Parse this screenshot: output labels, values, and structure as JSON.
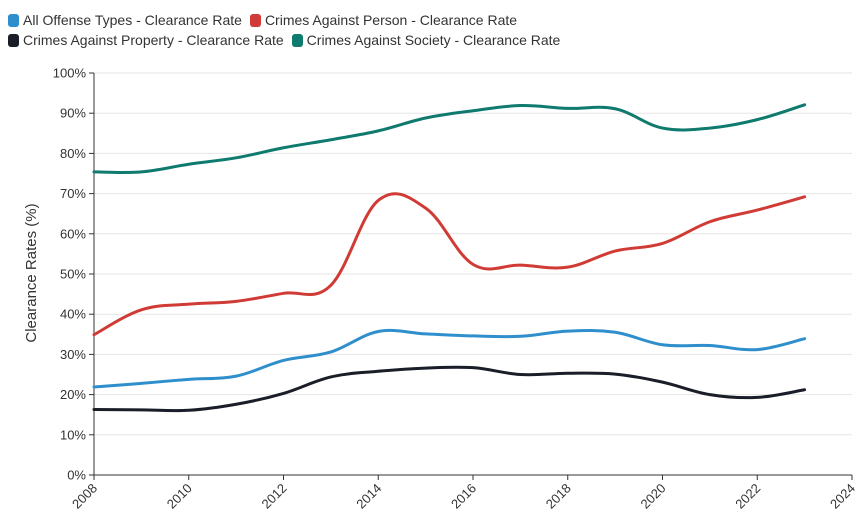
{
  "chart_data": {
    "type": "line",
    "title": "",
    "xlabel": "",
    "ylabel": "Clearance Rates (%)",
    "xlim": [
      2008,
      2024
    ],
    "ylim": [
      0,
      100
    ],
    "x_ticks": [
      2008,
      2010,
      2012,
      2014,
      2016,
      2018,
      2020,
      2022,
      2024
    ],
    "y_ticks": [
      0,
      10,
      20,
      30,
      40,
      50,
      60,
      70,
      80,
      90,
      100
    ],
    "y_tick_suffix": "%",
    "grid": "horizontal",
    "legend_position": "top-left",
    "x": [
      2008,
      2009,
      2010,
      2011,
      2012,
      2013,
      2014,
      2015,
      2016,
      2017,
      2018,
      2019,
      2020,
      2021,
      2022,
      2023
    ],
    "series": [
      {
        "name": "All Offense Types - Clearance Rate",
        "color": "#2e8fcc",
        "values": [
          21.9,
          22.8,
          23.8,
          24.6,
          28.5,
          30.6,
          35.7,
          35.1,
          34.6,
          34.5,
          35.8,
          35.5,
          32.4,
          32.2,
          31.2,
          33.9
        ]
      },
      {
        "name": "Crimes Against Person - Clearance Rate",
        "color": "#d03b35",
        "values": [
          34.9,
          41.1,
          42.5,
          43.2,
          45.2,
          47.2,
          68.3,
          66.4,
          52.4,
          52.2,
          51.7,
          55.7,
          57.6,
          63.0,
          65.9,
          69.2
        ]
      },
      {
        "name": "Crimes Against Property - Clearance Rate",
        "color": "#1a1e29",
        "values": [
          16.3,
          16.2,
          16.1,
          17.6,
          20.3,
          24.4,
          25.8,
          26.6,
          26.7,
          25.0,
          25.3,
          25.1,
          23.1,
          20.0,
          19.3,
          21.2
        ]
      },
      {
        "name": "Crimes Against Society - Clearance Rate",
        "color": "#0f7a6e",
        "values": [
          75.4,
          75.4,
          77.3,
          78.9,
          81.4,
          83.4,
          85.6,
          88.8,
          90.6,
          91.9,
          91.2,
          91.1,
          86.3,
          86.3,
          88.4,
          92.1
        ]
      }
    ]
  }
}
